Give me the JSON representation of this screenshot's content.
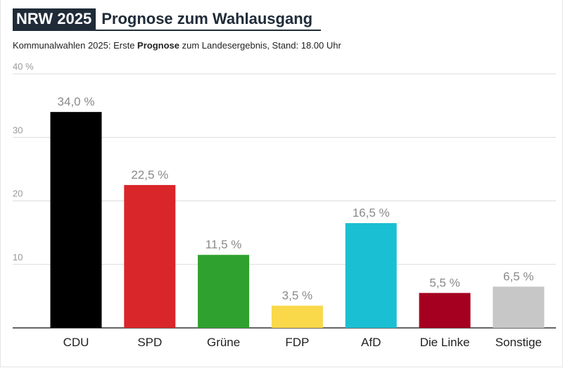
{
  "header": {
    "badge": "NRW 2025",
    "title": "Prognose zum Wahlausgang"
  },
  "subtitle": {
    "before": "Kommunalwahlen 2025: Erste ",
    "bold": "Prognose",
    "after": " zum Landesergebnis, Stand: 18.00 Uhr"
  },
  "chart_data": {
    "type": "bar",
    "title": "Prognose zum Wahlausgang",
    "xlabel": "",
    "ylabel": "",
    "ylim": [
      0,
      40
    ],
    "yticks": [
      {
        "value": 10,
        "label": "10"
      },
      {
        "value": 20,
        "label": "20"
      },
      {
        "value": 30,
        "label": "30"
      },
      {
        "value": 40,
        "label": "40 %"
      }
    ],
    "grid": true,
    "categories": [
      "CDU",
      "SPD",
      "Grüne",
      "FDP",
      "AfD",
      "Die Linke",
      "Sonstige"
    ],
    "values": [
      34.0,
      22.5,
      11.5,
      3.5,
      16.5,
      5.5,
      6.5
    ],
    "value_labels": [
      "34,0 %",
      "22,5 %",
      "11,5 %",
      "3,5 %",
      "16,5 %",
      "5,5 %",
      "6,5 %"
    ],
    "colors": [
      "#000000",
      "#d9262b",
      "#2ea12e",
      "#f9d84a",
      "#1bbfd3",
      "#a5001f",
      "#c7c7c7"
    ]
  }
}
